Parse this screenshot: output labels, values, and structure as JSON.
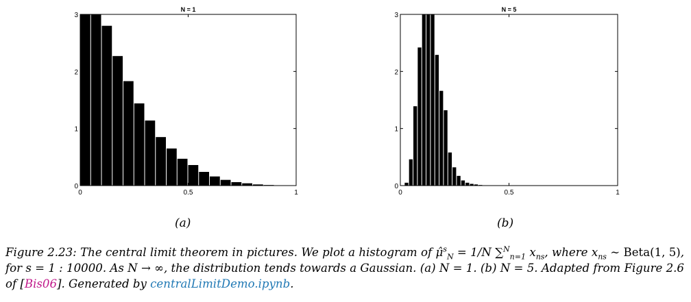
{
  "chart_data": [
    {
      "type": "bar",
      "title": "N = 1",
      "xlabel": "",
      "ylabel": "",
      "xlim": [
        0,
        1
      ],
      "ylim": [
        0,
        3
      ],
      "xticks": [
        "0",
        "0.5",
        "1"
      ],
      "yticks": [
        "0",
        "1",
        "2",
        "3"
      ],
      "bin_width": 0.05,
      "bin_starts": [
        0.0,
        0.05,
        0.1,
        0.15,
        0.2,
        0.25,
        0.3,
        0.35,
        0.4,
        0.45,
        0.5,
        0.55,
        0.6,
        0.65,
        0.7,
        0.75,
        0.8,
        0.85
      ],
      "values": [
        3.0,
        3.0,
        2.8,
        2.27,
        1.83,
        1.44,
        1.14,
        0.85,
        0.65,
        0.47,
        0.36,
        0.24,
        0.16,
        0.1,
        0.06,
        0.04,
        0.02,
        0.01
      ],
      "grid": false
    },
    {
      "type": "bar",
      "title": "N = 5",
      "xlabel": "",
      "ylabel": "",
      "xlim": [
        0,
        1
      ],
      "ylim": [
        0,
        3
      ],
      "xticks": [
        "0",
        "0.5",
        "1"
      ],
      "yticks": [
        "0",
        "1",
        "2",
        "3"
      ],
      "bin_width": 0.02,
      "bin_starts": [
        0.02,
        0.04,
        0.06,
        0.08,
        0.1,
        0.12,
        0.14,
        0.16,
        0.18,
        0.2,
        0.22,
        0.24,
        0.26,
        0.28,
        0.3,
        0.32,
        0.34,
        0.36,
        0.38,
        0.4
      ],
      "values": [
        0.05,
        0.46,
        1.39,
        2.42,
        3.0,
        3.0,
        3.0,
        2.29,
        1.66,
        1.32,
        0.58,
        0.32,
        0.17,
        0.09,
        0.05,
        0.03,
        0.02,
        0.01,
        0.005,
        0.003
      ],
      "grid": false
    }
  ],
  "subfigures": {
    "a_label": "(a)",
    "b_label": "(b)"
  },
  "caption": {
    "prefix": "Figure 2.23: The central limit theorem in pictures. We plot a histogram of",
    "mu_symbol": "μ̂",
    "mu_sup": "s",
    "mu_sub": "N",
    "equals": "=",
    "frac_num": "1",
    "frac_den": "N",
    "sum_symbol": "∑",
    "sum_sup": "N",
    "sum_sub": "n=1",
    "x": "x",
    "x_sub": "ns",
    "where": ", where",
    "x2": "x",
    "x2_sub": "ns",
    "sim": "∼",
    "beta": "Beta(1, 5)",
    "for_text": ", for",
    "s_range": "s = 1 : 10000.",
    "limit_text": "As N → ∞, the distribution tends towards a Gaussian.",
    "a_text": "(a) N = 1.",
    "b_text": "(b) N = 5.",
    "adapted": "Adapted from Figure 2.6 of [",
    "cite": "Bis06",
    "generated": "]. Generated by",
    "link": "centralLimitDemo.ipynb",
    "end": "."
  }
}
